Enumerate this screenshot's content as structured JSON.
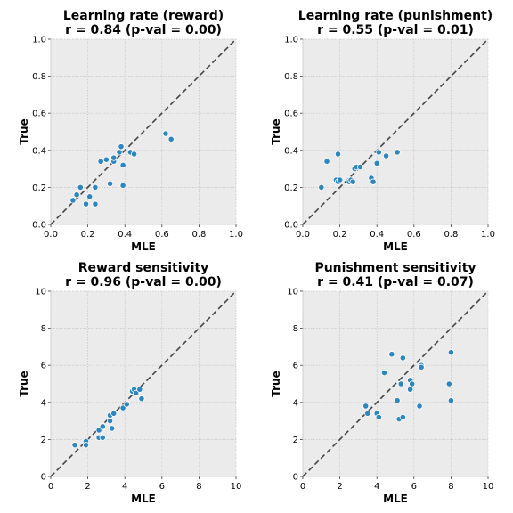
{
  "chart_data": [
    {
      "type": "scatter",
      "title": "Learning rate (reward)",
      "subtitle": "r = 0.84 (p-val = 0.00)",
      "xlabel": "MLE",
      "ylabel": "True",
      "xlim": [
        0,
        1
      ],
      "ylim": [
        0,
        1
      ],
      "xticks": [
        "0.0",
        "0.2",
        "0.4",
        "0.6",
        "0.8",
        "1.0"
      ],
      "yticks": [
        "0.0",
        "0.2",
        "0.4",
        "0.6",
        "0.8",
        "1.0"
      ],
      "grid": true,
      "identity_line": true,
      "point_color": "#2e86c1",
      "points": [
        [
          0.12,
          0.13
        ],
        [
          0.14,
          0.16
        ],
        [
          0.16,
          0.2
        ],
        [
          0.19,
          0.11
        ],
        [
          0.21,
          0.15
        ],
        [
          0.24,
          0.11
        ],
        [
          0.24,
          0.2
        ],
        [
          0.27,
          0.34
        ],
        [
          0.3,
          0.35
        ],
        [
          0.32,
          0.22
        ],
        [
          0.34,
          0.34
        ],
        [
          0.34,
          0.36
        ],
        [
          0.37,
          0.39
        ],
        [
          0.38,
          0.42
        ],
        [
          0.39,
          0.21
        ],
        [
          0.39,
          0.32
        ],
        [
          0.43,
          0.39
        ],
        [
          0.45,
          0.38
        ],
        [
          0.62,
          0.49
        ],
        [
          0.65,
          0.46
        ]
      ]
    },
    {
      "type": "scatter",
      "title": "Learning rate (punishment)",
      "subtitle": "r = 0.55 (p-val = 0.01)",
      "xlabel": "MLE",
      "ylabel": "True",
      "xlim": [
        0,
        1
      ],
      "ylim": [
        0,
        1
      ],
      "xticks": [
        "0.0",
        "0.2",
        "0.4",
        "0.6",
        "0.8",
        "1.0"
      ],
      "yticks": [
        "0.0",
        "0.2",
        "0.4",
        "0.6",
        "0.8",
        "1.0"
      ],
      "grid": true,
      "identity_line": true,
      "point_color": "#2e86c1",
      "points": [
        [
          0.1,
          0.2
        ],
        [
          0.13,
          0.34
        ],
        [
          0.18,
          0.24
        ],
        [
          0.19,
          0.23
        ],
        [
          0.19,
          0.38
        ],
        [
          0.2,
          0.24
        ],
        [
          0.25,
          0.23
        ],
        [
          0.26,
          0.24
        ],
        [
          0.27,
          0.23
        ],
        [
          0.28,
          0.3
        ],
        [
          0.29,
          0.31
        ],
        [
          0.31,
          0.31
        ],
        [
          0.37,
          0.25
        ],
        [
          0.38,
          0.23
        ],
        [
          0.4,
          0.33
        ],
        [
          0.41,
          0.39
        ],
        [
          0.45,
          0.37
        ],
        [
          0.51,
          0.39
        ]
      ]
    },
    {
      "type": "scatter",
      "title": "Reward sensitivity",
      "subtitle": "r = 0.96 (p-val = 0.00)",
      "xlabel": "MLE",
      "ylabel": "True",
      "xlim": [
        0,
        10
      ],
      "ylim": [
        0,
        10
      ],
      "xticks": [
        "0",
        "2",
        "4",
        "6",
        "8",
        "10"
      ],
      "yticks": [
        "0",
        "2",
        "4",
        "6",
        "8",
        "10"
      ],
      "grid": true,
      "identity_line": true,
      "point_color": "#2e86c1",
      "points": [
        [
          1.3,
          1.7
        ],
        [
          1.9,
          1.9
        ],
        [
          1.9,
          1.7
        ],
        [
          2.6,
          2.1
        ],
        [
          2.6,
          2.5
        ],
        [
          2.8,
          2.1
        ],
        [
          2.8,
          2.7
        ],
        [
          3.2,
          3.0
        ],
        [
          3.2,
          3.3
        ],
        [
          3.3,
          2.6
        ],
        [
          3.4,
          3.4
        ],
        [
          3.9,
          3.7
        ],
        [
          4.1,
          3.9
        ],
        [
          4.4,
          4.6
        ],
        [
          4.5,
          4.7
        ],
        [
          4.6,
          4.5
        ],
        [
          4.8,
          4.7
        ],
        [
          4.9,
          4.2
        ]
      ]
    },
    {
      "type": "scatter",
      "title": "Punishment sensitivity",
      "subtitle": "r = 0.41 (p-val = 0.07)",
      "xlabel": "MLE",
      "ylabel": "True",
      "xlim": [
        0,
        10
      ],
      "ylim": [
        0,
        10
      ],
      "xticks": [
        "0",
        "2",
        "4",
        "6",
        "8",
        "10"
      ],
      "yticks": [
        "0",
        "2",
        "4",
        "6",
        "8",
        "10"
      ],
      "grid": true,
      "identity_line": true,
      "point_color": "#2e86c1",
      "points": [
        [
          3.4,
          3.8
        ],
        [
          3.5,
          3.4
        ],
        [
          4.0,
          3.4
        ],
        [
          4.1,
          3.2
        ],
        [
          4.4,
          5.6
        ],
        [
          4.8,
          6.6
        ],
        [
          5.1,
          4.1
        ],
        [
          5.2,
          3.1
        ],
        [
          5.3,
          5.0
        ],
        [
          5.4,
          6.4
        ],
        [
          5.4,
          3.2
        ],
        [
          5.8,
          4.7
        ],
        [
          5.8,
          5.2
        ],
        [
          5.9,
          5.0
        ],
        [
          6.3,
          3.8
        ],
        [
          6.4,
          6.0
        ],
        [
          6.4,
          5.9
        ],
        [
          7.9,
          5.0
        ],
        [
          8.0,
          6.7
        ],
        [
          8.0,
          4.1
        ]
      ]
    }
  ]
}
